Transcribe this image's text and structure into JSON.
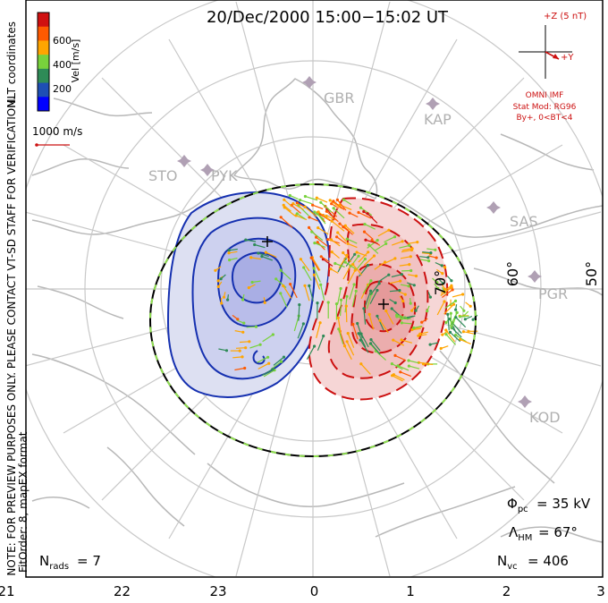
{
  "title": "20/Dec/2000 15:00−15:02 UT",
  "side_note": "NOTE: FOR PREVIEW PURPOSES ONLY. PLEASE CONTACT VT-SD STAFF FOR VERIFICATION.",
  "fit_note": "FitOrder: 8, mapEX format",
  "coords_label": "MLT coordinates",
  "color_scale": {
    "label": "Vel [m/s]",
    "ticks": [
      "600",
      "400",
      "200"
    ],
    "colors": [
      "#d01010",
      "#ff5a00",
      "#ffa500",
      "#78d23c",
      "#2e8b57",
      "#1e4fb4",
      "#0000ff"
    ]
  },
  "vector_ref": "1000 m/s",
  "imf": {
    "z_label": "+Z (5 nT)",
    "y_label": "+Y",
    "source": "OMNI IMF",
    "model": "Stat Mod: RG96",
    "condition": "By+, 0<BT<4"
  },
  "stations": [
    "GBR",
    "KAP",
    "STO",
    "PYK",
    "SAS",
    "PGR",
    "KOD"
  ],
  "latitude_labels": [
    "70°",
    "60°",
    "50°"
  ],
  "stats": {
    "phi_sym": "Φ",
    "phi_sub": "pc",
    "phi_val": "= 35 kV",
    "lambda_sym": "Λ",
    "lambda_sub": "HM",
    "lambda_val": "= 67°",
    "nvc_sym": "N",
    "nvc_sub": "vc",
    "nvc_val": "= 406",
    "nrads_sym": "N",
    "nrads_sub": "rads",
    "nrads_val": "= 7"
  },
  "chart_data": {
    "type": "polar convection map",
    "mlt_ticks": [
      "21",
      "22",
      "23",
      "0",
      "1",
      "2",
      "3"
    ],
    "latitude_rings_deg": [
      80,
      70,
      60,
      50
    ],
    "heppner_maynard_boundary_deg": 67,
    "cross_polar_cap_potential_kV": 35,
    "n_vectors": 406,
    "n_radars": 7,
    "colors": {
      "negative_cell": "#1530b0",
      "positive_cell": "#cc1010",
      "grid": "#c8c8c8",
      "land": "#b8b8b8",
      "station": "#b0a0b4"
    }
  }
}
